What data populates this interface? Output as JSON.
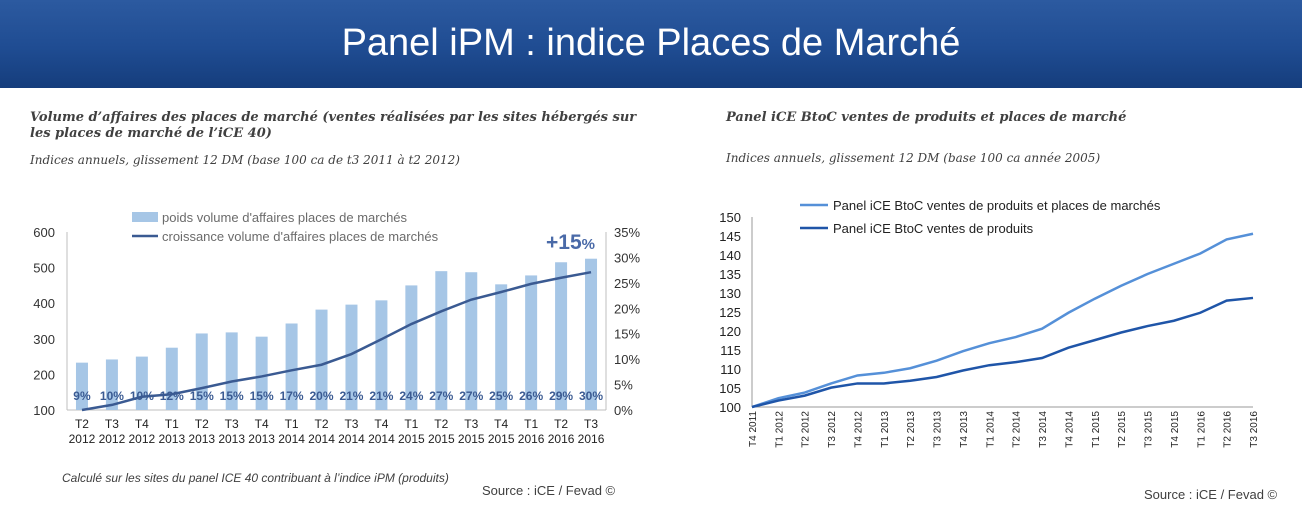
{
  "page": {
    "title": "Panel iPM : indice Places de Marché"
  },
  "left_panel": {
    "title_line1": "Volume d’affaires des places de marché (ventes réalisées par les sites hébergés sur",
    "title_line2": "les places de marché de l’iCE 40)",
    "subtitle": "Indices annuels, glissement 12 DM (base 100 ca de t3 2011 à t2 2012)",
    "note": "Calculé sur les sites du panel ICE 40 contribuant à l’indice iPM (produits)",
    "source": "Source : iCE / Fevad ©"
  },
  "right_panel": {
    "title": "Panel iCE BtoC ventes de produits et places de marché",
    "subtitle": "Indices annuels, glissement 12 DM (base 100 ca année 2005)",
    "source": "Source : iCE / Fevad ©"
  },
  "colors": {
    "bar": "#a6c6e6",
    "line_left": "#3a5a92",
    "line_light": "#5590d8",
    "line_dark": "#1f55a8",
    "header": "#1f4c92"
  },
  "chart_data": [
    {
      "type": "bar",
      "title": "Volume d’affaires des places de marché",
      "categories": [
        [
          "T2",
          "2012"
        ],
        [
          "T3",
          "2012"
        ],
        [
          "T4",
          "2012"
        ],
        [
          "T1",
          "2013"
        ],
        [
          "T2",
          "2013"
        ],
        [
          "T3",
          "2013"
        ],
        [
          "T4",
          "2013"
        ],
        [
          "T1",
          "2014"
        ],
        [
          "T2",
          "2014"
        ],
        [
          "T3",
          "2014"
        ],
        [
          "T4",
          "2014"
        ],
        [
          "T1",
          "2015"
        ],
        [
          "T2",
          "2015"
        ],
        [
          "T3",
          "2015"
        ],
        [
          "T4",
          "2015"
        ],
        [
          "T1",
          "2016"
        ],
        [
          "T2",
          "2016"
        ],
        [
          "T3",
          "2016"
        ]
      ],
      "series": [
        {
          "name": "poids volume d'affaires places de marchés",
          "kind": "bar",
          "axis": "left",
          "values": [
            233,
            242,
            250,
            275,
            315,
            318,
            306,
            343,
            382,
            396,
            408,
            450,
            490,
            487,
            453,
            478,
            515,
            525
          ]
        },
        {
          "name": "croissance volume d'affaires places de marchés",
          "kind": "line",
          "axis": "right",
          "values": [
            0,
            1,
            2.6,
            3.1,
            4.3,
            5.6,
            6.6,
            7.8,
            8.9,
            11.0,
            13.9,
            16.9,
            19.4,
            21.7,
            23.2,
            24.8,
            26.0,
            27.1
          ]
        }
      ],
      "data_labels": [
        "9%",
        "10%",
        "10%",
        "12%",
        "15%",
        "15%",
        "15%",
        "17%",
        "20%",
        "21%",
        "21%",
        "24%",
        "27%",
        "27%",
        "25%",
        "26%",
        "29%",
        "30%"
      ],
      "y_left": {
        "min": 100,
        "max": 600,
        "ticks": [
          "100",
          "200",
          "300",
          "400",
          "500",
          "600"
        ]
      },
      "y_right": {
        "min": 0,
        "max": 35,
        "ticks": [
          "0%",
          "5%",
          "10%",
          "15%",
          "20%",
          "25%",
          "30%",
          "35%"
        ]
      },
      "annotation": {
        "value": "+15",
        "unit": "%"
      },
      "legend": "top-center"
    },
    {
      "type": "line",
      "title": "Panel iCE BtoC ventes de produits et places de marché",
      "categories": [
        "T4 2011",
        "T1 2012",
        "T2 2012",
        "T3 2012",
        "T4 2012",
        "T1 2013",
        "T2 2013",
        "T3 2013",
        "T4 2013",
        "T1 2014",
        "T2 2014",
        "T3 2014",
        "T4 2014",
        "T1 2015",
        "T2 2015",
        "T3 2015",
        "T4 2015",
        "T1 2016",
        "T2 2016",
        "T3 2016"
      ],
      "series": [
        {
          "name": "Panel iCE BtoC ventes de produits et places de marchés",
          "values": [
            100,
            102.3,
            103.8,
            106.2,
            108.3,
            109.0,
            110.2,
            112.2,
            114.7,
            116.8,
            118.4,
            120.6,
            124.8,
            128.5,
            131.9,
            135.0,
            137.7,
            140.4,
            144.1,
            145.6
          ]
        },
        {
          "name": "Panel iCE BtoC ventes de produits",
          "values": [
            100,
            101.7,
            103.0,
            105.1,
            106.2,
            106.2,
            106.9,
            107.9,
            109.6,
            111.0,
            111.8,
            112.9,
            115.6,
            117.6,
            119.6,
            121.3,
            122.7,
            124.8,
            128.0,
            128.7
          ]
        }
      ],
      "ylim": [
        100,
        150
      ],
      "y_ticks": [
        "100",
        "105",
        "110",
        "115",
        "120",
        "125",
        "130",
        "135",
        "140",
        "145",
        "150"
      ],
      "legend": "top-left"
    }
  ]
}
